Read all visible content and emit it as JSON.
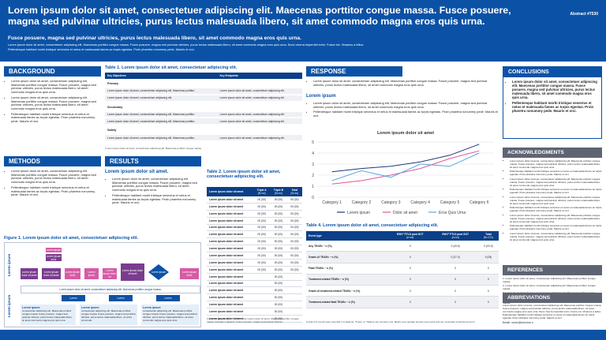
{
  "header": {
    "title": "Lorem ipsum dolor sit amet, consectetuer adipiscing elit. Maecenas porttitor congue massa. Fusce posuere, magna sed pulvinar ultricies, purus lectus malesuada libero, sit amet commodo magna eros quis urna.",
    "abstract": "Abstract #7530",
    "subtitle": "Fusce posuere, magna sed pulvinar ultricies, purus lectus malesuada libero, sit amet commodo magna eros quis urna.",
    "lines": [
      "Lorem ipsum dolor sit amet, consectetuer adipiscing elit. Maecenas porttitor congue massa. Fusce posuere, magna sed pulvinar ultricies, purus lectus malesuada libero, sit amet commodo magna eros quis urna. Nunc viverra imperdiet enim. Fusce est. Vivamus a tellus.",
      "Pellentesque habitant morbi tristique senectus et netus et malesuada fames ac turpis egestas. Proin pharetra nonummy pede. Mauris et orci."
    ]
  },
  "background": {
    "heading": "BACKGROUND",
    "bullets": [
      "Lorem ipsum dolor sit amet, consectetuer adipiscing elit. Maecenas porttitor congue massa. Fusce posuere, magna sed pulvinar ultricies, purus lectus malesuada libero, sit amet commodo magna eros quis urna.",
      "Lorem ipsum dolor sit amet, consectetuer adipiscing elit. Maecenas porttitor congue massa. Fusce posuere, magna sed pulvinar ultricies, purus lectus malesuada libero, sit amet commodo magna eros quis urna.",
      "Pellentesque habitant morbi tristique senectus et netus et malesuada fames ac turpis egestas. Proin pharetra nonummy pede. Mauris et orci."
    ]
  },
  "methods": {
    "heading": "METHODS",
    "bullets": [
      "Lorem ipsum dolor sit amet, consectetuer adipiscing elit. Maecenas porttitor congue massa. Fusce posuere, magna sed pulvinar ultricies, purus lectus malesuada libero, sit amet commodo magna eros quis urna.",
      "Pellentesque habitant morbi tristique senectus et netus et malesuada fames ac turpis egestas. Proin pharetra nonummy pede. Mauris et orci."
    ]
  },
  "table1": {
    "title": "Table 1. Lorem ipsum dolor sit amet, consectetuer adipiscing elit.",
    "columns": [
      "Key Objectives",
      "Key Endpoints"
    ],
    "groups": [
      {
        "name": "Primary",
        "rows": [
          [
            "Lorem ipsum dolor sit amet, consectetuer adipiscing elit. Maecenas porttitor.",
            "Lorem ipsum dolor sit amet, consectetuer adipiscing elit."
          ],
          [
            "Lorem ipsum dolor sit amet, consectetuer adipiscing elit.",
            "Lorem ipsum dolor sit amet, consectetuer adipiscing elit."
          ]
        ]
      },
      {
        "name": "Secondary",
        "rows": [
          [
            "Lorem ipsum dolor sit amet, consectetuer adipiscing elit. Maecenas porttitor.",
            "Lorem ipsum dolor sit amet, consectetuer adipiscing elit."
          ],
          [
            "Lorem ipsum dolor sit amet, consectetuer adipiscing elit. Maecenas porttitor.",
            "Lorem ipsum dolor sit amet, consectetuer adipiscing elit."
          ]
        ]
      },
      {
        "name": "Safety",
        "rows": [
          [
            "Lorem ipsum dolor sit amet, consectetuer adipiscing elit. Maecenas porttitor.",
            "Lorem ipsum dolor sit amet, consectetuer adipiscing elit."
          ]
        ]
      }
    ],
    "footnote": "*Lorem ipsum dolor sit amet, consectetuer adipiscing elit. Maecenas porttitor congue massa."
  },
  "results": {
    "heading": "RESULTS",
    "subheading": "Lorem ipsum dolor sit amet.",
    "bullets": [
      "Lorem ipsum dolor sit amet, consectetuer adipiscing elit. Maecenas porttitor congue massa. Fusce posuere, magna sed pulvinar ultricies, purus lectus malesuada libero, sit amet commodo magna eros quis urna.",
      "Pellentesque habitant morbi tristique senectus et netus et malesuada fames ac turpis egestas. Proin pharetra nonummy pede. Mauris et orci."
    ]
  },
  "table2": {
    "title": "Table 2. Lorem ipsum dolor sit amet, consectetuer adipiscing elit.",
    "columns": [
      {
        "label": "Lorem ipsum dolor sit amet."
      },
      {
        "label": "Triple A",
        "sub": "(N=xx)"
      },
      {
        "label": "Triple B",
        "sub": "(N=xx)"
      },
      {
        "label": "Total",
        "sub": "(N=xx)"
      }
    ],
    "rows": [
      [
        "Lorem ipsum dolor sit amet",
        "00 (00)",
        "00 (00)",
        "00 (00)"
      ],
      [
        "Lorem ipsum dolor sit amet",
        "00 (00)",
        "00 (00)",
        "00 (00)"
      ],
      [
        "Lorem ipsum dolor sit amet",
        "00 (00)",
        "00 (00)",
        "00 (00)"
      ],
      [
        "Lorem ipsum dolor sit amet",
        "00 (00)",
        "00 (00)",
        "00 (00)"
      ],
      [
        "Lorem ipsum dolor sit amet",
        "00 (00)",
        "00 (00)",
        "00 (00)"
      ],
      [
        "Lorem ipsum dolor sit amet",
        "00 (00)",
        "00 (00)",
        "00 (00)"
      ],
      [
        "Lorem ipsum dolor sit amet",
        "00 (00)",
        "00 (00)",
        "00 (00)"
      ],
      [
        "Lorem ipsum dolor sit amet",
        "00 (00)",
        "00 (00)",
        "00 (00)"
      ],
      [
        "Lorem ipsum dolor sit amet",
        "00 (00)",
        "00 (00)",
        "00 (00)"
      ],
      [
        "Lorem ipsum dolor sit amet",
        "00 (00)",
        "00 (00)",
        "00 (00)"
      ],
      [
        "Lorem ipsum dolor sit amet",
        "00 (00)",
        "00 (00)",
        "00 (00)"
      ],
      [
        "Lorem ipsum dolor sit amet",
        "00 (00)"
      ],
      [
        "Lorem ipsum dolor sit amet",
        "00 (00)"
      ],
      [
        "Lorem ipsum dolor sit amet",
        "00 (00)"
      ],
      [
        "Lorem ipsum dolor sit amet",
        "00 (00)"
      ],
      [
        "Lorem ipsum dolor sit amet",
        "00 (00)"
      ],
      [
        "Lorem ipsum dolor sit amet",
        "00 (00)"
      ],
      [
        "Lorem ipsum dolor sit amet",
        "00 (00)"
      ]
    ],
    "footnote": "Fusce posuere, n (%). *, C-NCT-Lorem ipsum dolor sit amet. Maecenas porttitor congue massa. Includes 1 patients. Fusce posuere, magna sed pulvinar ultricies."
  },
  "figure1": {
    "title": "Figure 1. Lorem ipsum dolor sit amet, consectetuer adipiscing elit.",
    "side_labels": [
      "Lorem ipsum",
      "Lorem ipsum"
    ],
    "top_boxes": [
      "Lorem ipsum",
      "Lorem ipsum dolor"
    ],
    "flow": [
      "Lorem ipsum dolor sit amet",
      "Lorem ipsum dolor sit amet",
      "Lorem ipsum dolor",
      "Lorem ipsum",
      "Lorem ipsum dolor sit",
      "Lorem ipsum dolor sit amet"
    ],
    "diamond": "Lorem ipsum",
    "end_box": "Lorem ipsum dolor",
    "banner": "Lorem ipsum dolor sit amet, consectetuer adipiscing elit. Maecenas porttitor congue massa.",
    "arms": [
      "Lorem",
      "Lorem",
      "Lorem"
    ],
    "notes": [
      {
        "title": "Lorem ipsum",
        "text": "consectetuer adipiscing elit. Maecenas porttitor congue massa. Fusce posuere, magna sed pulvinar ultricies, purus lectus malesuada libero, sit amet commodo magna eros quis urna."
      },
      {
        "title": "Lorem ipsum",
        "text": "consectetuer adipiscing elit. Maecenas porttitor congue massa. Fusce posuere, magna sed pulvinar ultricies, purus lectus malesuada libero, sit amet commodo."
      },
      {
        "title": "Lorem ipsum",
        "text": "consectetuer adipiscing elit. Maecenas porttitor congue massa. Fusce posuere, magna sed pulvinar ultricies, purus lectus malesuada libero, sit amet commodo magna eros quis urna."
      }
    ]
  },
  "response": {
    "heading": "RESPONSE",
    "bullets": [
      "Lorem ipsum dolor sit amet, consectetuer adipiscing elit. Maecenas porttitor congue massa. Fusce posuere, magna sed pulvinar ultricies, purus lectus malesuada libero, sit amet commodo magna eros quis urna."
    ],
    "subheading": "Lorem ipsum",
    "bullets2": [
      "Lorem ipsum dolor sit amet, consectetuer adipiscing elit. Maecenas porttitor congue massa. Fusce posuere, magna sed pulvinar ultricies, purus lectus malesuada libero, sit amet commodo magna eros quis urna.",
      "Pellentesque habitant morbi tristique senectus et netus et malesuada fames ac turpis egestas. Proin pharetra nonummy pede. Mauris et orci."
    ]
  },
  "chart_data": {
    "type": "line",
    "title": "Lorem ipsum dolor sit amet",
    "categories": [
      "Category 1",
      "Category 2",
      "Category 3",
      "Category 4",
      "Category 5",
      "Category 6"
    ],
    "series": [
      {
        "name": "Lorem ipsum",
        "color": "#1f3a78",
        "values": [
          2.3,
          2.6,
          2.8,
          3.2,
          3.8,
          4.8
        ]
      },
      {
        "name": "Dolor sit amet",
        "color": "#e0559c",
        "values": [
          1.2,
          1.5,
          2.0,
          2.6,
          3.5,
          4.2
        ]
      },
      {
        "name": "Eros Quis Urna",
        "color": "#5aa9e0",
        "values": [
          1.5,
          2.4,
          1.8,
          3.0,
          2.8,
          4.0
        ]
      }
    ],
    "ylim": [
      0,
      5
    ],
    "yticks": [
      0,
      1,
      2,
      3,
      4,
      5
    ],
    "grid": true,
    "legend": "bottom"
  },
  "table4": {
    "title": "Table 4. Lorem ipsum dolor sit amet, consectetuer adipiscing elit.",
    "columns": [
      {
        "label": "Event type"
      },
      {
        "label": "EWV° FTLD post HCT",
        "sub": "(n=xx)"
      },
      {
        "label": "EWV° FTLD post SOT",
        "sub": "(n=xx)"
      },
      {
        "label": "Total",
        "sub": "(N=171)"
      }
    ],
    "rows": [
      [
        "Any TEAEs ~ n (%)",
        "0",
        "0 (43.5)",
        "0 (03.3)"
      ],
      [
        "Grade ≥3 TEAEs ~ n (%)",
        "0",
        "0 (27.3)",
        "3 (05)"
      ],
      [
        "Fatal TEAEs ~ n (%)",
        "0",
        "0",
        "0"
      ],
      [
        "Treatment-related TEAEs ~ n (%)",
        "0",
        "0",
        "0"
      ],
      [
        "Grade ≥3 treatment-related TEAEs ~ n (%)",
        "0",
        "0",
        "0"
      ],
      [
        "Treatment-related fatal TEAEs ~ n (%)",
        "0",
        "0",
        "0"
      ]
    ],
    "footnote": "A total of 6 events were reported in 5 patients. *Fusce ut. *Mauris sem tempus mus. Mauris sem gentiae tempus erat; porta velit est; venenatis sit lacinia procuror."
  },
  "conclusions": {
    "heading": "CONCLUSIONS",
    "bullets": [
      "Lorem ipsum dolor sit amet, consectetuer adipiscing elit. Maecenas porttitor congue massa. Fusce posuere, magna sed pulvinar ultricies, purus lectus malesuada libero, sit amet commodo magna eros quis urna.",
      "Pellentesque habitant morbi tristique senectus et netus et malesuada fames ac turpis egestas. Proin pharetra nonummy pede. Mauris et orci."
    ]
  },
  "acknowledgments": {
    "heading": "ACKNOWLEDGMENTS",
    "bullets": [
      "Lorem ipsum dolor sit amet, consectetuer adipiscing elit. Maecenas porttitor congue massa. Fusce posuere, magna sed pulvinar ultricies, purus lectus malesuada libero, sit amet commodo magna eros quis urna.",
      "Pellentesque habitant morbi tristique senectus et netus et malesuada fames ac turpis egestas. Proin pharetra nonummy pede. Mauris et orci.",
      "Lorem ipsum dolor sit amet, consectetuer adipiscing elit. Maecenas porttitor congue massa. Fusce posuere, magna sed pulvinar ultricies, purus lectus malesuada libero, sit amet commodo magna eros quis urna.",
      "Pellentesque habitant morbi tristique senectus et netus et malesuada fames ac turpis egestas. Proin pharetra nonummy pede. Mauris et orci.",
      "Lorem ipsum dolor sit amet, consectetuer adipiscing elit. Maecenas porttitor congue massa. Fusce posuere, magna sed pulvinar ultricies, purus lectus malesuada libero, sit amet commodo magna eros quis urna.",
      "Pellentesque habitant morbi tristique senectus et netus et malesuada fames ac turpis egestas. Proin pharetra nonummy pede. Mauris et orci.",
      "Lorem ipsum dolor sit amet, consectetuer adipiscing elit. Maecenas porttitor congue massa. Fusce posuere, magna sed pulvinar ultricies, purus lectus malesuada libero, sit amet commodo magna eros quis urna.",
      "Pellentesque habitant morbi tristique senectus et netus et malesuada fames ac turpis egestas. Proin pharetra nonummy pede. Mauris et orci.",
      "Lorem ipsum dolor sit amet, consectetuer adipiscing elit. Maecenas porttitor congue massa. Fusce posuere, magna sed pulvinar ultricies, purus lectus malesuada libero, sit amet commodo magna eros quis urna."
    ]
  },
  "references": {
    "heading": "REFERENCES",
    "items": [
      "1. Lorem ipsum dolor sit amet, consectetuer adipiscing elit. Maecenas porttitor congue massa.",
      "2. Lorem ipsum dolor sit amet, consectetuer adipiscing elit. Maecenas porttitor congue massa.",
      "3. Lorem ipsum dolor sit amet, consectetuer adipiscing elit. Maecenas porttitor congue massa.",
      "4. Lorem ipsum dolor sit amet, consectetuer adipiscing elit. Maecenas porttitor congue massa."
    ]
  },
  "abbreviations": {
    "heading": "ABBREVIATIONS",
    "text": "Lorem ipsum dolor sit amet, consectetuer adipiscing elit. Maecenas porttitor congue massa. Fusce posuere, magna sed pulvinar ultricies, purus lectus malesuada libero, sit amet commodo magna eros quis urna. Nunc viverra imperdiet enim. Fusce est. Vivamus a tellus. Pellentesque habitant morbi tristique senectus et netus et malesuada fames ac turpis egestas. Proin pharetra nonummy pede. Mauris et orci."
  },
  "email": "Email: xxxxx@xxxxxxx.x"
}
